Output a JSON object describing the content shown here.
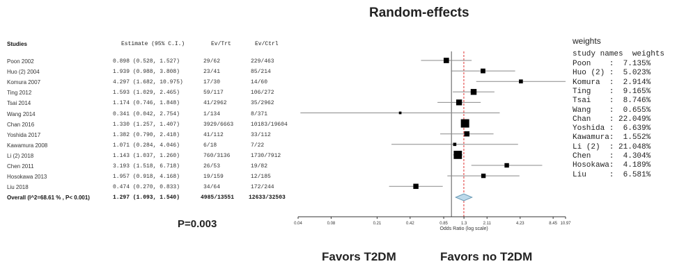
{
  "title": "Random-effects",
  "p_value": "P=0.003",
  "favors_left": "Favors T2DM",
  "favors_right": "Favors no T2DM",
  "table": {
    "headers": [
      "Studies",
      "Estimate (95% C.I.)",
      "Ev/Trt",
      "Ev/Ctrl"
    ],
    "rows": [
      {
        "study": "Poon 2002",
        "estimate": "0.898 (0.528, 1.527)",
        "ev_trt": "29/62",
        "ev_ctrl": "229/463"
      },
      {
        "study": "Huo (2) 2004",
        "estimate": "1.939 (0.988, 3.808)",
        "ev_trt": "23/41",
        "ev_ctrl": "85/214"
      },
      {
        "study": "Komura 2007",
        "estimate": "4.297 (1.682, 10.975)",
        "ev_trt": "17/30",
        "ev_ctrl": "14/60"
      },
      {
        "study": "Ting 2012",
        "estimate": "1.593 (1.029, 2.465)",
        "ev_trt": "59/117",
        "ev_ctrl": "106/272"
      },
      {
        "study": "Tsai 2014",
        "estimate": "1.174 (0.746, 1.848)",
        "ev_trt": "41/2962",
        "ev_ctrl": "35/2962"
      },
      {
        "study": "Wang 2014",
        "estimate": "0.341 (0.042, 2.754)",
        "ev_trt": "1/134",
        "ev_ctrl": "8/371"
      },
      {
        "study": "Chan 2016",
        "estimate": "1.330 (1.257, 1.407)",
        "ev_trt": "3929/6663",
        "ev_ctrl": "10183/19604"
      },
      {
        "study": "Yoshida 2017",
        "estimate": "1.382 (0.790, 2.418)",
        "ev_trt": "41/112",
        "ev_ctrl": "33/112"
      },
      {
        "study": "Kawamura 2008",
        "estimate": "1.071 (0.284, 4.046)",
        "ev_trt": "6/18",
        "ev_ctrl": "7/22"
      },
      {
        "study": "Li (2) 2018",
        "estimate": "1.143 (1.037, 1.260)",
        "ev_trt": "760/3136",
        "ev_ctrl": "1730/7912"
      },
      {
        "study": "Chen 2011",
        "estimate": "3.193 (1.518, 6.718)",
        "ev_trt": "26/53",
        "ev_ctrl": "19/82"
      },
      {
        "study": "Hosokawa 2013",
        "estimate": "1.957 (0.918, 4.168)",
        "ev_trt": "19/159",
        "ev_ctrl": "12/185"
      },
      {
        "study": "Liu 2018",
        "estimate": "0.474 (0.270, 0.833)",
        "ev_trt": "34/64",
        "ev_ctrl": "172/244"
      }
    ],
    "overall": {
      "study": "Overall (I^2=68.61 % , P< 0.001)",
      "estimate": "1.297 (1.093, 1.540)",
      "ev_trt": "4985/13551",
      "ev_ctrl": "12633/32503"
    }
  },
  "weights": {
    "title": "weights",
    "header": "study names  weights",
    "rows": [
      "Poon    :  7.135%",
      "Huo (2) :  5.023%",
      "Komura  :  2.914%",
      "Ting    :  9.165%",
      "Tsai    :  8.746%",
      "Wang    :  0.655%",
      "Chan    : 22.049%",
      "Yoshida :  6.639%",
      "Kawamura:  1.552%",
      "Li (2)  : 21.048%",
      "Chen    :  4.304%",
      "Hosokawa:  4.189%",
      "Liu     :  6.581%"
    ]
  },
  "chart_data": {
    "type": "forest",
    "xlabel": "Odds Ratio (log scale)",
    "x_scale": "log",
    "xlim": [
      0.04,
      10.97
    ],
    "x_ticks": [
      0.04,
      0.08,
      0.21,
      0.42,
      0.85,
      1.3,
      2.11,
      4.23,
      8.45,
      10.97
    ],
    "x_tick_labels": [
      "0.04",
      "0.08",
      "0.21",
      "0.42",
      "0.85",
      "1.3",
      "2.11",
      "4.23",
      "8.45",
      "10.97"
    ],
    "null_line": 1,
    "pooled_line": 1.297,
    "studies": [
      {
        "or": 0.898,
        "lo": 0.528,
        "hi": 1.527,
        "weight": 7.135
      },
      {
        "or": 1.939,
        "lo": 0.988,
        "hi": 3.808,
        "weight": 5.023
      },
      {
        "or": 4.297,
        "lo": 1.682,
        "hi": 10.975,
        "weight": 2.914
      },
      {
        "or": 1.593,
        "lo": 1.029,
        "hi": 2.465,
        "weight": 9.165
      },
      {
        "or": 1.174,
        "lo": 0.746,
        "hi": 1.848,
        "weight": 8.746
      },
      {
        "or": 0.341,
        "lo": 0.042,
        "hi": 2.754,
        "weight": 0.655
      },
      {
        "or": 1.33,
        "lo": 1.257,
        "hi": 1.407,
        "weight": 22.049
      },
      {
        "or": 1.382,
        "lo": 0.79,
        "hi": 2.418,
        "weight": 6.639
      },
      {
        "or": 1.071,
        "lo": 0.284,
        "hi": 4.046,
        "weight": 1.552
      },
      {
        "or": 1.143,
        "lo": 1.037,
        "hi": 1.26,
        "weight": 21.048
      },
      {
        "or": 3.193,
        "lo": 1.518,
        "hi": 6.718,
        "weight": 4.304
      },
      {
        "or": 1.957,
        "lo": 0.918,
        "hi": 4.168,
        "weight": 4.189
      },
      {
        "or": 0.474,
        "lo": 0.27,
        "hi": 0.833,
        "weight": 6.581
      }
    ],
    "overall": {
      "or": 1.297,
      "lo": 1.093,
      "hi": 1.54
    },
    "colors": {
      "diamond_fill": "#bcd9ea",
      "diamond_stroke": "#6a9ab5",
      "pooled_line": "#e03030",
      "ci_line": "#888888",
      "marker": "#000000"
    }
  }
}
